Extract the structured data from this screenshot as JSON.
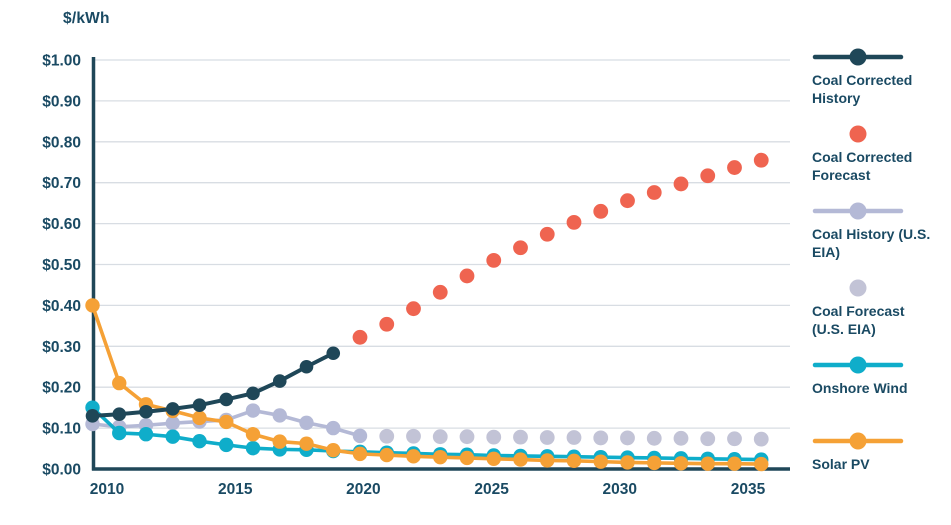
{
  "title": "$/kWh",
  "colors": {
    "text": "#1a4a63",
    "axis": "#1f4758",
    "gridline": "#d8dde3",
    "background": "#ffffff",
    "coal_corrected_history": "#1f4758",
    "coal_corrected_forecast": "#ef6450",
    "coal_history_eia": "#b4b9d6",
    "coal_forecast_eia": "#c2c3d6",
    "onshore_wind": "#0fadca",
    "solar_pv": "#f5a136"
  },
  "legend": {
    "items": [
      {
        "label": "Coal Corrected History",
        "style": "line-dot",
        "color": "#1f4758"
      },
      {
        "label": "Coal Corrected Forecast",
        "style": "dot",
        "color": "#ef6450"
      },
      {
        "label": "Coal History (U.S. EIA)",
        "style": "line-dot",
        "color": "#b4b9d6"
      },
      {
        "label": "Coal Forecast (U.S. EIA)",
        "style": "dot",
        "color": "#c2c3d6"
      },
      {
        "label": "Onshore Wind",
        "style": "line-dot",
        "color": "#0fadca"
      },
      {
        "label": "Solar PV",
        "style": "line-dot",
        "color": "#f5a136"
      }
    ]
  },
  "chart_data": {
    "type": "line",
    "title": "$/kWh",
    "ylabel": "$/kWh",
    "xlabel": "",
    "ylim": [
      0.0,
      1.0
    ],
    "xlim_years": [
      2010,
      2035
    ],
    "grid": "horizontal",
    "legend_position": "right",
    "y_tick_values": [
      0.0,
      0.1,
      0.2,
      0.3,
      0.4,
      0.5,
      0.6,
      0.7,
      0.8,
      0.9,
      1.0
    ],
    "y_tick_labels": [
      "$0.00",
      "$0.10",
      "$0.20",
      "$0.30",
      "$0.40",
      "$0.50",
      "$0.60",
      "$0.70",
      "$0.80",
      "$0.90",
      "$1.00"
    ],
    "x_tick_labels": [
      "2010",
      "2015",
      "2020",
      "2025",
      "2030",
      "2035"
    ],
    "series": [
      {
        "name": "Coal Corrected History",
        "slug": "coal-corrected-history",
        "style": "line-dot",
        "color": "#1f4758",
        "years": [
          2010,
          2011,
          2012,
          2013,
          2014,
          2015,
          2016,
          2017,
          2018,
          2019
        ],
        "values": [
          0.13,
          0.134,
          0.14,
          0.147,
          0.156,
          0.17,
          0.185,
          0.215,
          0.25,
          0.283
        ]
      },
      {
        "name": "Coal Corrected Forecast",
        "slug": "coal-corrected-forecast",
        "style": "dot",
        "color": "#ef6450",
        "years": [
          2020,
          2021,
          2022,
          2023,
          2024,
          2025,
          2026,
          2027,
          2028,
          2029,
          2030,
          2031,
          2032,
          2033,
          2034,
          2035
        ],
        "values": [
          0.322,
          0.354,
          0.392,
          0.432,
          0.472,
          0.51,
          0.541,
          0.574,
          0.603,
          0.63,
          0.656,
          0.676,
          0.697,
          0.717,
          0.737,
          0.755
        ]
      },
      {
        "name": "Coal History (U.S. EIA)",
        "slug": "coal-history-eia",
        "style": "line-dot",
        "color": "#b4b9d6",
        "years": [
          2010,
          2011,
          2012,
          2013,
          2014,
          2015,
          2016,
          2017,
          2018,
          2019,
          2020
        ],
        "values": [
          0.11,
          0.103,
          0.107,
          0.112,
          0.116,
          0.12,
          0.143,
          0.131,
          0.113,
          0.1,
          0.081
        ]
      },
      {
        "name": "Coal Forecast (U.S. EIA)",
        "slug": "coal-forecast-eia",
        "style": "dot",
        "color": "#c2c3d6",
        "years": [
          2021,
          2022,
          2023,
          2024,
          2025,
          2026,
          2027,
          2028,
          2029,
          2030,
          2031,
          2032,
          2033,
          2034,
          2035
        ],
        "values": [
          0.08,
          0.08,
          0.079,
          0.079,
          0.078,
          0.078,
          0.077,
          0.077,
          0.076,
          0.076,
          0.075,
          0.075,
          0.074,
          0.074,
          0.073
        ]
      },
      {
        "name": "Onshore Wind",
        "slug": "onshore-wind",
        "style": "line-dot",
        "color": "#0fadca",
        "years": [
          2010,
          2011,
          2012,
          2013,
          2014,
          2015,
          2016,
          2017,
          2018,
          2019,
          2020,
          2021,
          2022,
          2023,
          2024,
          2025,
          2026,
          2027,
          2028,
          2029,
          2030,
          2031,
          2032,
          2033,
          2034,
          2035
        ],
        "values": [
          0.15,
          0.088,
          0.085,
          0.079,
          0.068,
          0.059,
          0.051,
          0.048,
          0.047,
          0.044,
          0.042,
          0.04,
          0.038,
          0.036,
          0.035,
          0.033,
          0.032,
          0.031,
          0.03,
          0.029,
          0.028,
          0.027,
          0.026,
          0.025,
          0.024,
          0.023
        ]
      },
      {
        "name": "Solar PV",
        "slug": "solar-pv",
        "style": "line-dot",
        "color": "#f5a136",
        "years": [
          2010,
          2011,
          2012,
          2013,
          2014,
          2015,
          2016,
          2017,
          2018,
          2019,
          2020,
          2021,
          2022,
          2023,
          2024,
          2025,
          2026,
          2027,
          2028,
          2029,
          2030,
          2031,
          2032,
          2033,
          2034,
          2035
        ],
        "values": [
          0.4,
          0.21,
          0.158,
          0.142,
          0.125,
          0.115,
          0.085,
          0.067,
          0.062,
          0.046,
          0.037,
          0.034,
          0.031,
          0.029,
          0.027,
          0.025,
          0.023,
          0.021,
          0.02,
          0.018,
          0.016,
          0.015,
          0.014,
          0.013,
          0.013,
          0.012
        ]
      }
    ]
  }
}
